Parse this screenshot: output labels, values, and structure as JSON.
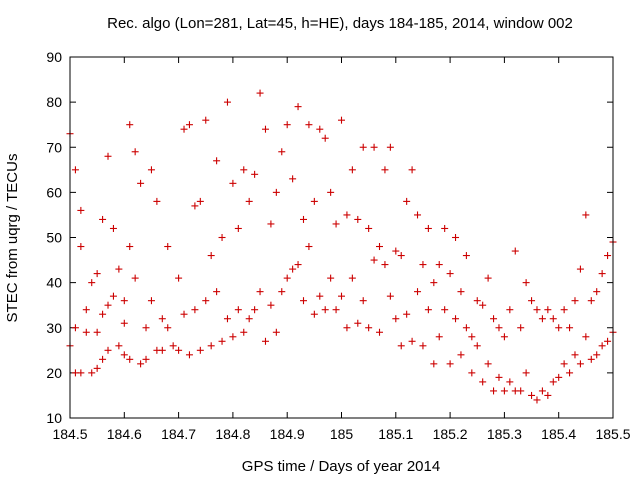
{
  "chart_data": {
    "type": "scatter",
    "title": "Rec. algo (Lon=281, Lat=45, h=HE), days 184-185, 2014, window 002",
    "xlabel": "GPS time / Days of year 2014",
    "ylabel": "STEC from uqrg / TECUs",
    "xlim": [
      184.5,
      185.5
    ],
    "ylim": [
      10,
      90
    ],
    "xticks": [
      184.5,
      184.6,
      184.7,
      184.8,
      184.9,
      185,
      185.1,
      185.2,
      185.3,
      185.4,
      185.5
    ],
    "xtick_labels": [
      "184.5",
      "184.6",
      "184.7",
      "184.8",
      "184.9",
      "185",
      "185.1",
      "185.2",
      "185.3",
      "185.4",
      "185.5"
    ],
    "yticks": [
      10,
      20,
      30,
      40,
      50,
      60,
      70,
      80,
      90
    ],
    "ytick_labels": [
      "10",
      "20",
      "30",
      "40",
      "50",
      "60",
      "70",
      "80",
      "90"
    ],
    "grid": false,
    "legend": "none",
    "marker": "plus",
    "color": "#cc0000",
    "series": [
      {
        "x": [
          184.5,
          184.5,
          184.51,
          184.51,
          184.51,
          184.52,
          184.52,
          184.52,
          184.53,
          184.53,
          184.54,
          184.54,
          184.55,
          184.55,
          184.55,
          184.56,
          184.56,
          184.56,
          184.57,
          184.57,
          184.57,
          184.58,
          184.58,
          184.59,
          184.59,
          184.6,
          184.6,
          184.6,
          184.61,
          184.61,
          184.61,
          184.62,
          184.62,
          184.63,
          184.63,
          184.64,
          184.64,
          184.65,
          184.65,
          184.66,
          184.66,
          184.67,
          184.67,
          184.68,
          184.68,
          184.69,
          184.7,
          184.7,
          184.71,
          184.71,
          184.72,
          184.72,
          184.73,
          184.73,
          184.74,
          184.74,
          184.75,
          184.75,
          184.76,
          184.76,
          184.77,
          184.77,
          184.78,
          184.78,
          184.79,
          184.79,
          184.8,
          184.8,
          184.81,
          184.81,
          184.82,
          184.82,
          184.83,
          184.83,
          184.84,
          184.84,
          184.85,
          184.85,
          184.86,
          184.86,
          184.87,
          184.87,
          184.88,
          184.88,
          184.89,
          184.89,
          184.9,
          184.9,
          184.91,
          184.91,
          184.92,
          184.92,
          184.93,
          184.93,
          184.94,
          184.94,
          184.95,
          184.95,
          184.96,
          184.96,
          184.97,
          184.97,
          184.98,
          184.98,
          184.99,
          184.99,
          185.0,
          185.0,
          185.01,
          185.01,
          185.02,
          185.02,
          185.03,
          185.03,
          185.04,
          185.04,
          185.05,
          185.05,
          185.06,
          185.06,
          185.07,
          185.07,
          185.08,
          185.08,
          185.09,
          185.09,
          185.1,
          185.1,
          185.11,
          185.11,
          185.12,
          185.12,
          185.13,
          185.13,
          185.14,
          185.14,
          185.15,
          185.15,
          185.16,
          185.16,
          185.17,
          185.17,
          185.18,
          185.18,
          185.19,
          185.19,
          185.2,
          185.2,
          185.21,
          185.21,
          185.22,
          185.22,
          185.23,
          185.23,
          185.24,
          185.24,
          185.25,
          185.25,
          185.26,
          185.26,
          185.27,
          185.27,
          185.28,
          185.28,
          185.29,
          185.29,
          185.3,
          185.3,
          185.31,
          185.31,
          185.32,
          185.32,
          185.33,
          185.33,
          185.34,
          185.34,
          185.35,
          185.35,
          185.36,
          185.36,
          185.37,
          185.37,
          185.38,
          185.38,
          185.39,
          185.39,
          185.4,
          185.4,
          185.41,
          185.41,
          185.42,
          185.42,
          185.43,
          185.43,
          185.44,
          185.44,
          185.45,
          185.45,
          185.46,
          185.46,
          185.47,
          185.47,
          185.48,
          185.48,
          185.49,
          185.49,
          185.5,
          185.5
        ],
        "y": [
          73,
          26,
          65,
          20,
          30,
          56,
          20,
          48,
          34,
          29,
          40,
          20,
          42,
          29,
          21,
          54,
          33,
          23,
          68,
          35,
          25,
          52,
          37,
          26,
          43,
          31,
          24,
          36,
          75,
          48,
          23,
          69,
          41,
          22,
          62,
          30,
          23,
          65,
          36,
          25,
          58,
          32,
          25,
          48,
          30,
          26,
          41,
          25,
          74,
          33,
          75,
          24,
          57,
          34,
          58,
          25,
          76,
          36,
          46,
          26,
          67,
          38,
          50,
          27,
          80,
          32,
          62,
          28,
          52,
          34,
          65,
          29,
          58,
          32,
          64,
          34,
          82,
          38,
          74,
          27,
          53,
          35,
          60,
          29,
          69,
          38,
          75,
          41,
          63,
          43,
          79,
          44,
          54,
          36,
          75,
          48,
          58,
          33,
          74,
          37,
          72,
          34,
          60,
          41,
          53,
          34,
          76,
          37,
          55,
          30,
          65,
          41,
          54,
          31,
          70,
          36,
          52,
          30,
          70,
          45,
          48,
          29,
          65,
          44,
          70,
          37,
          47,
          32,
          46,
          26,
          58,
          33,
          65,
          27,
          55,
          38,
          44,
          26,
          52,
          34,
          40,
          22,
          44,
          28,
          52,
          34,
          42,
          22,
          50,
          32,
          38,
          24,
          46,
          30,
          28,
          20,
          36,
          26,
          35,
          18,
          41,
          22,
          32,
          16,
          30,
          19,
          28,
          16,
          34,
          18,
          47,
          16,
          30,
          16,
          40,
          20,
          36,
          15,
          34,
          14,
          32,
          16,
          34,
          15,
          32,
          18,
          30,
          19,
          34,
          22,
          30,
          20,
          36,
          24,
          43,
          22,
          55,
          28,
          36,
          23,
          38,
          24,
          42,
          26,
          46,
          27,
          49,
          29
        ]
      }
    ]
  }
}
